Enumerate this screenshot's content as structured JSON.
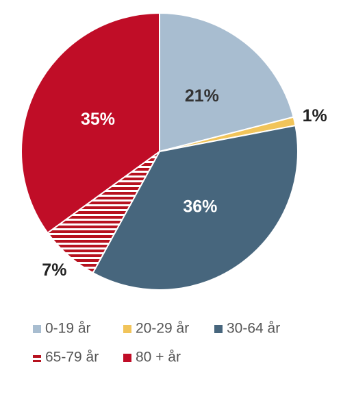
{
  "chart_data": {
    "type": "pie",
    "categories": [
      "0-19 år",
      "20-29 år",
      "30-64 år",
      "65-79 år",
      "80 + år"
    ],
    "values": [
      21,
      1,
      36,
      7,
      35
    ],
    "value_labels": [
      "21%",
      "1%",
      "36%",
      "7%",
      "35%"
    ],
    "colors": [
      "#a8bdd0",
      "#f1c45a",
      "#47667d",
      "#b7121f",
      "#c00d27"
    ],
    "hatch": [
      false,
      false,
      false,
      true,
      false
    ],
    "legend": "bottom"
  }
}
